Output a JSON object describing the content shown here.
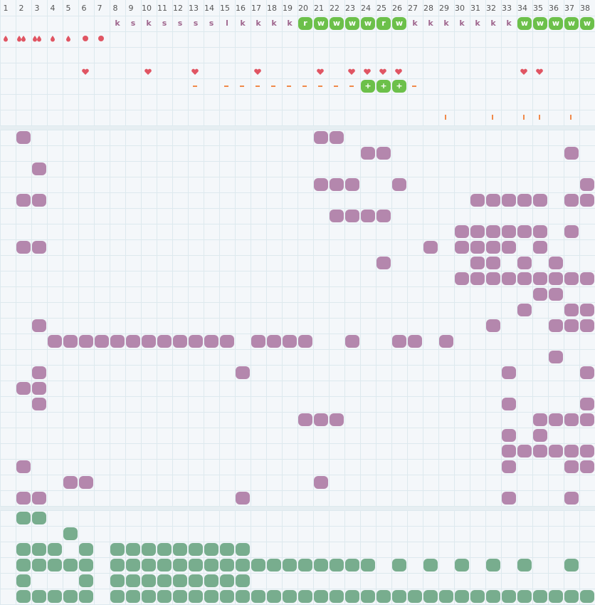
{
  "columns": [
    1,
    2,
    3,
    4,
    5,
    6,
    7,
    8,
    9,
    10,
    11,
    12,
    13,
    14,
    15,
    16,
    17,
    18,
    19,
    20,
    21,
    22,
    23,
    24,
    25,
    26,
    27,
    28,
    29,
    30,
    31,
    32,
    33,
    34,
    35,
    36,
    37,
    38
  ],
  "top": {
    "letters": [
      {
        "col": 8,
        "text": "k"
      },
      {
        "col": 9,
        "text": "s"
      },
      {
        "col": 10,
        "text": "k"
      },
      {
        "col": 11,
        "text": "s"
      },
      {
        "col": 12,
        "text": "s"
      },
      {
        "col": 13,
        "text": "s"
      },
      {
        "col": 14,
        "text": "s"
      },
      {
        "col": 15,
        "text": "l"
      },
      {
        "col": 16,
        "text": "k"
      },
      {
        "col": 17,
        "text": "k"
      },
      {
        "col": 18,
        "text": "k"
      },
      {
        "col": 19,
        "text": "k"
      },
      {
        "col": 27,
        "text": "k"
      },
      {
        "col": 28,
        "text": "k"
      },
      {
        "col": 29,
        "text": "k"
      },
      {
        "col": 30,
        "text": "k"
      },
      {
        "col": 31,
        "text": "k"
      },
      {
        "col": 32,
        "text": "k"
      },
      {
        "col": 33,
        "text": "k"
      }
    ],
    "badges": [
      {
        "col": 20,
        "text": "r"
      },
      {
        "col": 21,
        "text": "w"
      },
      {
        "col": 22,
        "text": "w"
      },
      {
        "col": 23,
        "text": "w"
      },
      {
        "col": 24,
        "text": "w"
      },
      {
        "col": 25,
        "text": "r"
      },
      {
        "col": 26,
        "text": "w"
      },
      {
        "col": 34,
        "text": "w"
      },
      {
        "col": 35,
        "text": "w"
      },
      {
        "col": 36,
        "text": "w"
      },
      {
        "col": 37,
        "text": "w"
      },
      {
        "col": 38,
        "text": "w"
      }
    ],
    "drops": [
      {
        "col": 1,
        "count": 1
      },
      {
        "col": 2,
        "count": 2
      },
      {
        "col": 3,
        "count": 2
      },
      {
        "col": 4,
        "count": 1
      },
      {
        "col": 5,
        "count": 1
      }
    ],
    "dots": [
      6,
      7
    ],
    "hearts": [
      6,
      10,
      13,
      17,
      21,
      23,
      24,
      25,
      26,
      34,
      35
    ],
    "dashes": [
      13,
      15,
      16,
      17,
      18,
      19,
      20,
      21,
      22,
      23,
      27
    ],
    "plus_badges": {
      "cols": [
        24,
        25,
        26
      ],
      "text": "+"
    },
    "ticks": [
      29,
      32,
      34,
      35,
      37
    ]
  },
  "middle": [
    [
      2,
      21,
      22
    ],
    [
      24,
      25,
      37
    ],
    [
      3
    ],
    [
      21,
      22,
      23,
      26,
      38
    ],
    [
      2,
      3,
      31,
      32,
      33,
      34,
      35,
      37,
      38
    ],
    [
      22,
      23,
      24,
      25
    ],
    [
      30,
      31,
      32,
      33,
      34,
      35,
      37
    ],
    [
      2,
      3,
      28,
      30,
      31,
      32,
      33,
      35
    ],
    [
      25,
      31,
      32,
      34,
      36
    ],
    [
      30,
      31,
      32,
      33,
      34,
      35,
      36,
      37,
      38
    ],
    [
      35,
      36
    ],
    [
      34,
      37,
      38
    ],
    [
      3,
      32,
      36,
      37,
      38
    ],
    [
      4,
      5,
      6,
      7,
      8,
      9,
      10,
      11,
      12,
      13,
      14,
      15,
      17,
      18,
      19,
      20,
      23,
      26,
      27,
      29
    ],
    [
      36
    ],
    [
      3,
      16,
      33,
      38
    ],
    [
      2,
      3
    ],
    [
      3,
      33,
      38
    ],
    [
      20,
      21,
      22,
      35,
      36,
      37,
      38
    ],
    [
      33,
      35
    ],
    [
      33,
      34,
      35,
      36,
      37,
      38
    ],
    [
      2,
      33,
      37,
      38
    ],
    [
      5,
      6,
      21
    ],
    [
      2,
      3,
      16,
      33,
      37
    ]
  ],
  "bottom": [
    [
      2,
      3
    ],
    [
      5
    ],
    [
      2,
      3,
      4,
      6,
      8,
      9,
      10,
      11,
      12,
      13,
      14,
      15,
      16
    ],
    [
      2,
      3,
      4,
      5,
      6,
      8,
      9,
      10,
      11,
      12,
      13,
      14,
      15,
      16,
      17,
      18,
      19,
      20,
      21,
      22,
      23,
      24,
      26,
      28,
      30,
      32,
      34,
      37
    ],
    [
      2,
      6,
      8,
      9,
      10,
      11,
      12,
      13,
      14,
      15,
      16
    ],
    [
      2,
      3,
      4,
      5,
      6,
      8,
      9,
      10,
      11,
      12,
      13,
      14,
      15,
      16,
      17,
      18,
      19,
      20,
      21,
      22,
      23,
      24,
      25,
      26,
      27,
      28,
      29,
      30,
      31,
      32,
      33,
      34,
      35,
      36,
      37,
      38
    ]
  ]
}
